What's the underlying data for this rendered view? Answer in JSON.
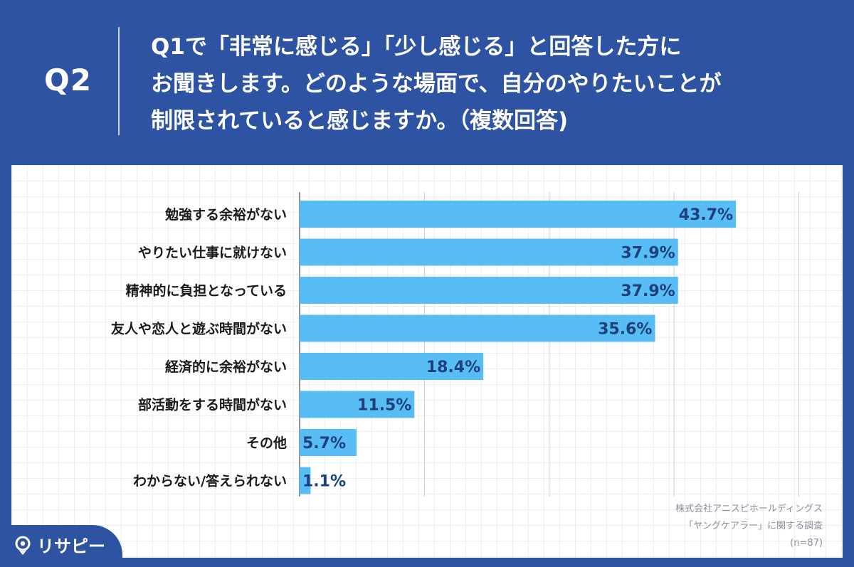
{
  "header": {
    "q_label": "Q2",
    "question_lines": [
      "Q1で「非常に感じる」「少し感じる」と回答した方に",
      "お聞きします。どのような場面で、自分のやりたいことが",
      "制限されていると感じますか。（複数回答)"
    ]
  },
  "chart_data": {
    "type": "bar",
    "orientation": "horizontal",
    "title": "",
    "xlabel": "",
    "ylabel": "",
    "unit": "%",
    "xlim": [
      0,
      100
    ],
    "grid": true,
    "bar_color": "#59bdf5",
    "categories": [
      "勉強する余裕がない",
      "やりたい仕事に就けない",
      "精神的に負担となっている",
      "友人や恋人と遊ぶ時間がない",
      "経済的に余裕がない",
      "部活動をする時間がない",
      "その他",
      "わからない/答えられない"
    ],
    "values": [
      43.7,
      37.9,
      37.9,
      35.6,
      18.4,
      11.5,
      5.7,
      1.1
    ],
    "data_labels": [
      "43.7%",
      "37.9%",
      "37.9%",
      "35.6%",
      "18.4%",
      "11.5%",
      "5.7%",
      "1.1%"
    ]
  },
  "source": {
    "line1": "株式会社アニスピホールディングス",
    "line2": "「ヤングケアラー」に関する調査",
    "line3": "(n=87)"
  },
  "brand": {
    "name": "リサピー",
    "icon": "pin-icon"
  }
}
